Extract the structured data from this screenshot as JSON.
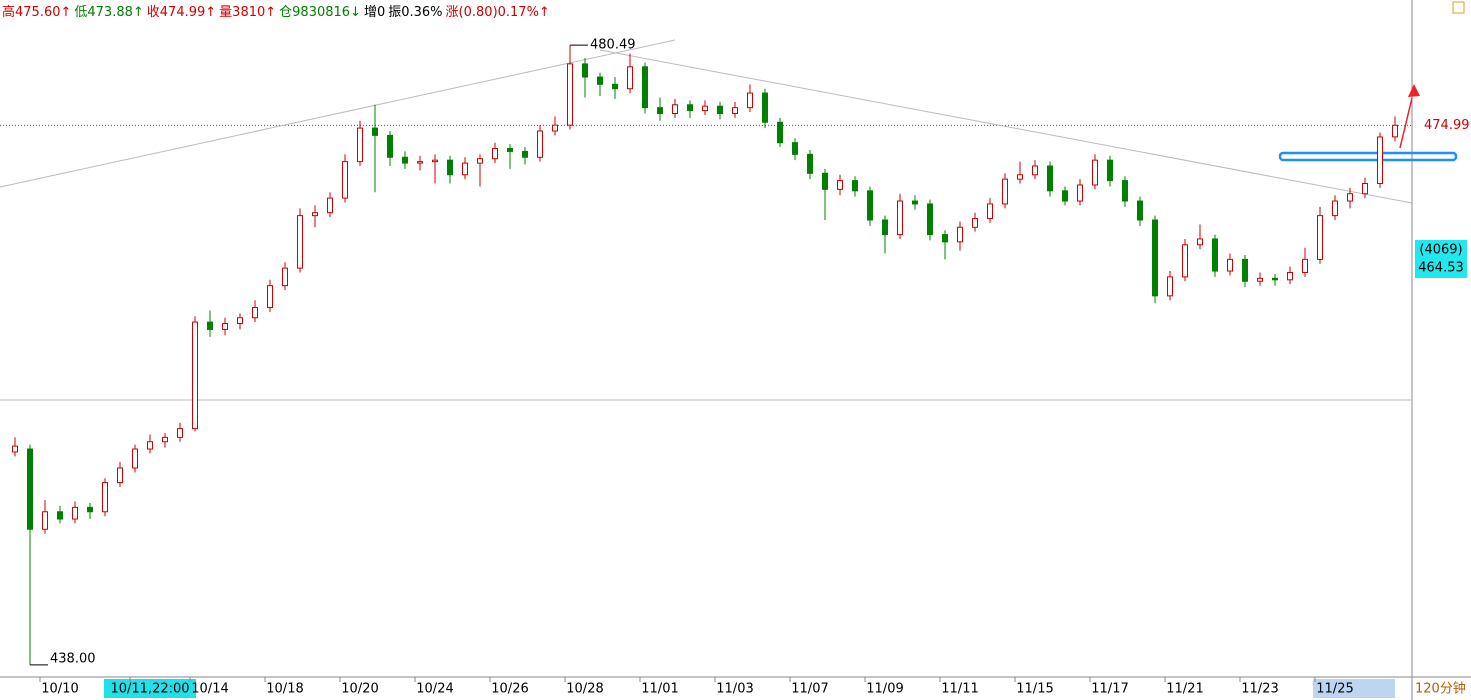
{
  "chart_data": {
    "type": "candlestick",
    "header": [
      {
        "text": "高475.60↑",
        "color": "#d00000"
      },
      {
        "text": "低473.88↑",
        "color": "#008000"
      },
      {
        "text": "收474.99↑",
        "color": "#d00000"
      },
      {
        "text": "量3810↑",
        "color": "#d00000"
      },
      {
        "text": "仓9830816↓",
        "color": "#008000"
      },
      {
        "text": "增0",
        "color": "#000000"
      },
      {
        "text": "振0.36%",
        "color": "#000000"
      },
      {
        "text": "涨(0.80)0.17%↑",
        "color": "#d00000"
      }
    ],
    "up_color": "#d00000",
    "down_color": "#008000",
    "ylim": [
      437.31,
      483.58
    ],
    "categories": [
      null,
      null,
      null,
      "10/10",
      null,
      null,
      null,
      null,
      null,
      "10/11,22:00",
      null,
      null,
      null,
      "10/14",
      null,
      null,
      null,
      null,
      "10/18",
      null,
      null,
      null,
      null,
      "10/20",
      null,
      null,
      null,
      null,
      "10/24",
      null,
      null,
      null,
      null,
      "10/26",
      null,
      null,
      null,
      null,
      "10/28",
      null,
      null,
      null,
      null,
      "11/01",
      null,
      null,
      null,
      null,
      "11/03",
      null,
      null,
      null,
      null,
      "11/07",
      null,
      null,
      null,
      null,
      "11/09",
      null,
      null,
      null,
      null,
      "11/11",
      null,
      null,
      null,
      null,
      "11/15",
      null,
      null,
      null,
      null,
      "11/17",
      null,
      null,
      null,
      null,
      "11/21",
      null,
      null,
      null,
      null,
      "11/23",
      null,
      null,
      null,
      null,
      "11/25",
      null,
      null,
      null,
      null
    ],
    "highlight": [
      {
        "index": 9,
        "color": "#22e0e8"
      },
      {
        "index": 88,
        "color": "#bcd6f2"
      }
    ],
    "candles": [
      [
        452.6,
        453.6,
        452.3,
        453.0
      ],
      [
        452.8,
        453.1,
        438,
        447.3
      ],
      [
        447.3,
        449.3,
        447.0,
        448.5
      ],
      [
        448.5,
        448.9,
        447.7,
        448.0
      ],
      [
        448.0,
        449.2,
        447.7,
        448.8
      ],
      [
        448.8,
        449.1,
        448.0,
        448.5
      ],
      [
        448.5,
        450.8,
        448.2,
        450.5
      ],
      [
        450.5,
        451.9,
        450.2,
        451.5
      ],
      [
        451.5,
        453.1,
        451.2,
        452.8
      ],
      [
        452.8,
        453.8,
        452.5,
        453.3
      ],
      [
        453.3,
        453.9,
        452.9,
        453.6
      ],
      [
        453.6,
        454.6,
        453.3,
        454.2
      ],
      [
        454.2,
        461.9,
        454.0,
        461.5
      ],
      [
        461.5,
        462.3,
        460.5,
        461.0
      ],
      [
        461.0,
        461.8,
        460.6,
        461.4
      ],
      [
        461.4,
        462.1,
        461.0,
        461.8
      ],
      [
        461.8,
        463.0,
        461.5,
        462.5
      ],
      [
        462.5,
        464.4,
        462.2,
        464.0
      ],
      [
        464.0,
        465.6,
        463.7,
        465.2
      ],
      [
        465.2,
        469.3,
        464.9,
        468.8
      ],
      [
        468.8,
        469.5,
        468.0,
        469.0
      ],
      [
        469.0,
        470.4,
        468.7,
        470.0
      ],
      [
        470.0,
        473.0,
        469.7,
        472.5
      ],
      [
        472.5,
        475.3,
        472.2,
        474.8
      ],
      [
        474.8,
        476.4,
        470.4,
        474.3
      ],
      [
        474.3,
        474.6,
        472.2,
        472.8
      ],
      [
        472.8,
        473.2,
        472.0,
        472.4
      ],
      [
        472.4,
        472.9,
        471.9,
        472.5
      ],
      [
        472.5,
        473.0,
        471.0,
        472.6
      ],
      [
        472.6,
        472.9,
        471.0,
        471.6
      ],
      [
        471.6,
        472.8,
        471.3,
        472.4
      ],
      [
        472.4,
        473.0,
        470.8,
        472.7
      ],
      [
        472.7,
        473.8,
        472.4,
        473.4
      ],
      [
        473.4,
        473.7,
        472.0,
        473.2
      ],
      [
        473.2,
        473.5,
        472.3,
        472.8
      ],
      [
        472.8,
        475.0,
        472.5,
        474.6
      ],
      [
        474.6,
        475.6,
        474.3,
        475.0
      ],
      [
        475.0,
        480.49,
        474.7,
        479.2
      ],
      [
        479.2,
        479.6,
        476.9,
        478.3
      ],
      [
        478.3,
        478.6,
        477.0,
        477.8
      ],
      [
        477.8,
        478.3,
        476.8,
        477.5
      ],
      [
        477.5,
        479.9,
        477.2,
        479.0
      ],
      [
        479.0,
        479.3,
        475.8,
        476.2
      ],
      [
        476.2,
        476.9,
        475.3,
        475.8
      ],
      [
        475.8,
        476.8,
        475.5,
        476.4
      ],
      [
        476.4,
        476.7,
        475.5,
        476.0
      ],
      [
        476.0,
        476.7,
        475.7,
        476.3
      ],
      [
        476.3,
        476.6,
        475.4,
        475.8
      ],
      [
        475.8,
        476.6,
        475.5,
        476.2
      ],
      [
        476.2,
        477.8,
        475.9,
        477.2
      ],
      [
        477.2,
        477.5,
        474.8,
        475.2
      ],
      [
        475.2,
        475.5,
        473.5,
        473.8
      ],
      [
        473.8,
        474.1,
        472.6,
        473.0
      ],
      [
        473.0,
        473.3,
        471.3,
        471.7
      ],
      [
        471.7,
        472.0,
        468.5,
        470.6
      ],
      [
        470.6,
        471.6,
        470.2,
        471.2
      ],
      [
        471.2,
        471.5,
        470.1,
        470.5
      ],
      [
        470.5,
        470.8,
        468.1,
        468.5
      ],
      [
        468.5,
        468.8,
        466.2,
        467.5
      ],
      [
        467.5,
        470.3,
        467.2,
        469.8
      ],
      [
        469.8,
        470.2,
        469.2,
        469.6
      ],
      [
        469.6,
        469.9,
        467.1,
        467.5
      ],
      [
        467.5,
        467.8,
        465.8,
        467.0
      ],
      [
        467.0,
        468.4,
        466.4,
        468.0
      ],
      [
        468.0,
        469.0,
        467.7,
        468.6
      ],
      [
        468.6,
        470.0,
        468.3,
        469.6
      ],
      [
        469.6,
        471.7,
        469.3,
        471.3
      ],
      [
        471.3,
        472.5,
        471.0,
        471.6
      ],
      [
        471.6,
        472.6,
        471.3,
        472.2
      ],
      [
        472.2,
        472.5,
        470.1,
        470.5
      ],
      [
        470.5,
        470.8,
        469.5,
        469.8
      ],
      [
        469.8,
        471.3,
        469.5,
        470.9
      ],
      [
        470.9,
        473.0,
        470.6,
        472.6
      ],
      [
        472.6,
        472.9,
        470.8,
        471.2
      ],
      [
        471.2,
        471.5,
        469.4,
        469.8
      ],
      [
        469.8,
        470.1,
        468.1,
        468.5
      ],
      [
        468.5,
        468.8,
        462.8,
        463.3
      ],
      [
        463.3,
        465.0,
        463.0,
        464.6
      ],
      [
        464.6,
        467.2,
        464.3,
        466.8
      ],
      [
        466.8,
        468.2,
        466.5,
        467.2
      ],
      [
        467.2,
        467.5,
        464.6,
        465.0
      ],
      [
        465.0,
        466.2,
        464.7,
        465.8
      ],
      [
        465.8,
        466.1,
        463.9,
        464.3
      ],
      [
        464.3,
        464.9,
        464.0,
        464.5
      ],
      [
        464.5,
        464.8,
        464.0,
        464.4
      ],
      [
        464.4,
        465.3,
        464.1,
        464.9
      ],
      [
        464.9,
        466.6,
        464.6,
        465.8
      ],
      [
        465.8,
        469.4,
        465.5,
        468.8
      ],
      [
        468.8,
        470.2,
        468.5,
        469.8
      ],
      [
        469.8,
        470.7,
        469.3,
        470.3
      ],
      [
        470.3,
        471.4,
        470.0,
        471.0
      ],
      [
        471.0,
        474.5,
        470.7,
        474.19
      ],
      [
        474.2,
        475.6,
        473.88,
        474.99
      ]
    ],
    "max_label": 480.49,
    "min_label": {
      "value": 438,
      "label": "438.00"
    },
    "cursor_box": [
      "(4069)",
      464.53
    ],
    "timeframe": "120分钟"
  }
}
